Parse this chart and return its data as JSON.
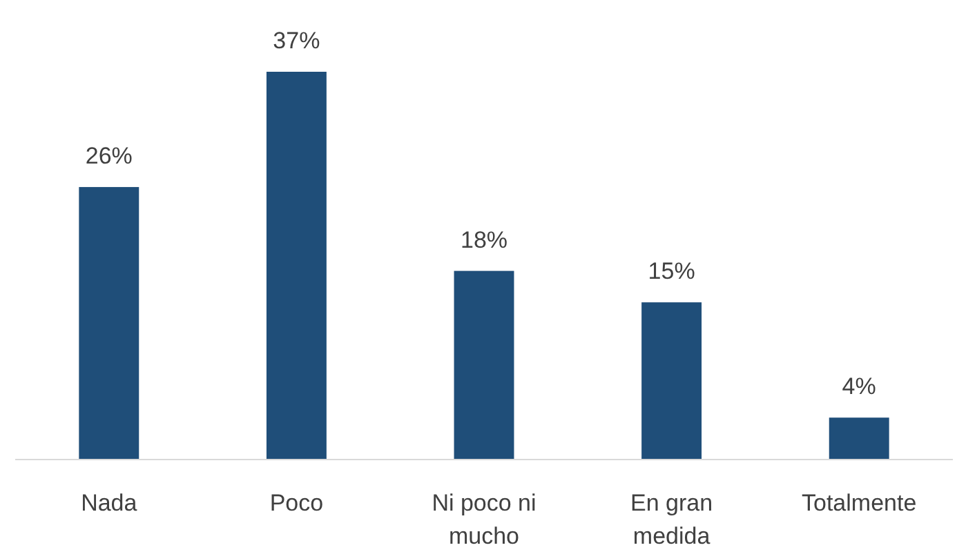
{
  "chart_data": {
    "type": "bar",
    "categories": [
      "Nada",
      "Poco",
      "Ni poco ni mucho",
      "En gran medida",
      "Totalmente"
    ],
    "values": [
      26,
      37,
      18,
      15,
      4
    ],
    "value_labels": [
      "26%",
      "37%",
      "18%",
      "15%",
      "4%"
    ],
    "color": "#1f4e79"
  }
}
